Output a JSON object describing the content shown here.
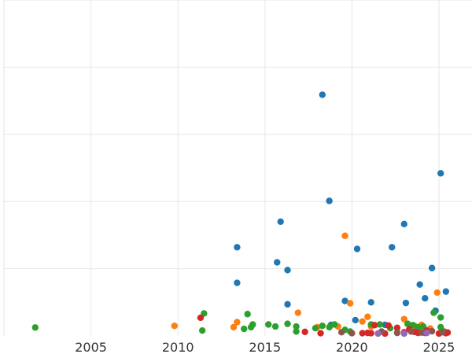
{
  "chart_data": {
    "type": "scatter",
    "title": "",
    "xlabel": "",
    "ylabel": "",
    "xlim": [
      2000.0,
      2026.9
    ],
    "ylim": [
      0,
      100
    ],
    "x_ticks": [
      2005,
      2010,
      2015,
      2020,
      2025
    ],
    "x_tick_labels": [
      "2005",
      "2010",
      "2015",
      "2020",
      "2025"
    ],
    "y_gridlines": [
      20,
      40,
      60,
      80,
      100
    ],
    "grid": true,
    "legend": "none",
    "series": [
      {
        "name": "blue",
        "color": "#1f77b4",
        "points": [
          [
            2018.3,
            71.8
          ],
          [
            2025.1,
            48.4
          ],
          [
            2018.7,
            40.2
          ],
          [
            2015.9,
            34.0
          ],
          [
            2023.0,
            33.3
          ],
          [
            2013.4,
            26.4
          ],
          [
            2020.3,
            25.9
          ],
          [
            2022.3,
            26.4
          ],
          [
            2015.7,
            21.9
          ],
          [
            2016.3,
            19.6
          ],
          [
            2024.6,
            20.2
          ],
          [
            2013.4,
            15.8
          ],
          [
            2023.9,
            15.3
          ],
          [
            2025.4,
            13.2
          ],
          [
            2024.2,
            11.2
          ],
          [
            2019.6,
            10.4
          ],
          [
            2021.1,
            10.0
          ],
          [
            2023.1,
            9.8
          ],
          [
            2016.3,
            9.4
          ],
          [
            2024.8,
            7.5
          ],
          [
            2020.2,
            4.7
          ],
          [
            2021.9,
            3.3
          ],
          [
            2018.8,
            3.3
          ]
        ]
      },
      {
        "name": "orange",
        "color": "#ff7f0e",
        "points": [
          [
            2019.6,
            29.8
          ],
          [
            2024.9,
            12.9
          ],
          [
            2019.9,
            9.7
          ],
          [
            2016.9,
            6.9
          ],
          [
            2020.9,
            5.7
          ],
          [
            2023.0,
            5.0
          ],
          [
            2013.4,
            4.1
          ],
          [
            2020.6,
            4.3
          ],
          [
            2009.8,
            3.0
          ],
          [
            2013.2,
            2.6
          ],
          [
            2019.2,
            2.8
          ],
          [
            2024.0,
            3.3
          ],
          [
            2018.0,
            2.6
          ],
          [
            2021.1,
            2.8
          ],
          [
            2023.6,
            3.0
          ],
          [
            2024.5,
            2.2
          ]
        ]
      },
      {
        "name": "green",
        "color": "#2ca02c",
        "points": [
          [
            2001.8,
            2.5
          ],
          [
            2011.5,
            6.7
          ],
          [
            2014.0,
            6.5
          ],
          [
            2011.4,
            1.6
          ],
          [
            2013.8,
            2.1
          ],
          [
            2014.2,
            2.6
          ],
          [
            2014.3,
            3.4
          ],
          [
            2015.2,
            3.4
          ],
          [
            2015.6,
            2.8
          ],
          [
            2016.3,
            3.6
          ],
          [
            2016.8,
            2.8
          ],
          [
            2016.8,
            1.3
          ],
          [
            2017.9,
            2.3
          ],
          [
            2018.3,
            3.0
          ],
          [
            2018.7,
            2.6
          ],
          [
            2019.0,
            3.4
          ],
          [
            2019.6,
            1.8
          ],
          [
            2021.1,
            3.4
          ],
          [
            2021.6,
            3.4
          ],
          [
            2022.2,
            2.3
          ],
          [
            2023.2,
            3.6
          ],
          [
            2023.5,
            3.2
          ],
          [
            2023.8,
            2.6
          ],
          [
            2024.1,
            2.8
          ],
          [
            2024.7,
            6.9
          ],
          [
            2025.1,
            5.5
          ],
          [
            2025.1,
            2.6
          ],
          [
            2025.3,
            1.3
          ],
          [
            2019.9,
            1.3
          ]
        ]
      },
      {
        "name": "red",
        "color": "#d62728",
        "points": [
          [
            2011.3,
            5.4
          ],
          [
            2017.3,
            1.2
          ],
          [
            2018.2,
            0.8
          ],
          [
            2020.6,
            0.8
          ],
          [
            2020.9,
            0.9
          ],
          [
            2021.1,
            0.8
          ],
          [
            2021.3,
            3.2
          ],
          [
            2021.9,
            0.7
          ],
          [
            2022.1,
            3.1
          ],
          [
            2022.6,
            2.4
          ],
          [
            2023.0,
            1.1
          ],
          [
            2023.3,
            2.0
          ],
          [
            2023.6,
            1.2
          ],
          [
            2023.8,
            0.9
          ],
          [
            2024.2,
            0.9
          ],
          [
            2024.3,
            1.6
          ],
          [
            2025.0,
            0.7
          ],
          [
            2025.4,
            0.8
          ],
          [
            2025.5,
            1.0
          ]
        ]
      },
      {
        "name": "brown",
        "color": "#8c564b",
        "points": [
          [
            2019.4,
            1.1
          ],
          [
            2020.0,
            0.8
          ],
          [
            2021.7,
            1.3
          ],
          [
            2022.6,
            0.9
          ],
          [
            2023.4,
            1.3
          ],
          [
            2024.0,
            1.0
          ],
          [
            2024.6,
            1.4
          ],
          [
            2025.2,
            1.1
          ]
        ]
      },
      {
        "name": "purple",
        "color": "#9467bd",
        "points": [
          [
            2021.5,
            0.7
          ],
          [
            2023.0,
            0.7
          ],
          [
            2024.3,
            0.9
          ]
        ]
      }
    ]
  }
}
